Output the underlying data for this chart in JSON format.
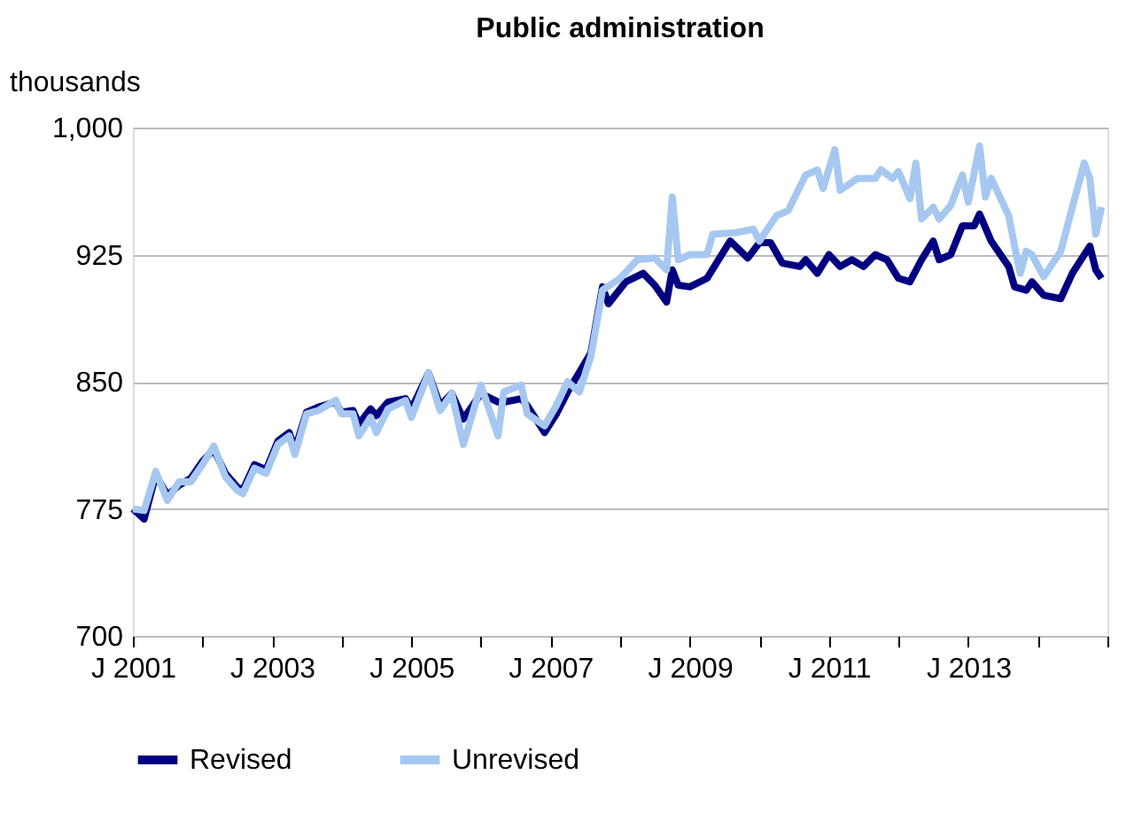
{
  "chart_data": {
    "type": "line",
    "title": "Public administration",
    "ylabel": "thousands",
    "xlim": [
      "2001-01",
      "2015-01"
    ],
    "xticks": [
      {
        "value": "2001-01",
        "label": "J 2001"
      },
      {
        "value": "2002-01",
        "label": null
      },
      {
        "value": "2003-01",
        "label": "J 2003"
      },
      {
        "value": "2004-01",
        "label": null
      },
      {
        "value": "2005-01",
        "label": "J 2005"
      },
      {
        "value": "2006-01",
        "label": null
      },
      {
        "value": "2007-01",
        "label": "J 2007"
      },
      {
        "value": "2008-01",
        "label": null
      },
      {
        "value": "2009-01",
        "label": "J 2009"
      },
      {
        "value": "2010-01",
        "label": null
      },
      {
        "value": "2011-01",
        "label": "J 2011"
      },
      {
        "value": "2012-01",
        "label": null
      },
      {
        "value": "2013-01",
        "label": "J 2013"
      },
      {
        "value": "2014-01",
        "label": null
      },
      {
        "value": "2015-01",
        "label": null
      }
    ],
    "ylim": [
      700,
      1000
    ],
    "yticks": [
      700,
      775,
      850,
      925,
      {
        "value": 1000,
        "label": "1,000"
      }
    ],
    "grid": "y",
    "legend": "bottom",
    "line_style": "solid",
    "marker": "none",
    "series": [
      {
        "name": "Revised",
        "color": "#000080",
        "x": [
          "2001-01",
          "2001-03",
          "2001-05",
          "2001-07",
          "2001-09",
          "2001-11",
          "2002-01",
          "2002-03",
          "2002-05",
          "2002-07",
          "2002-08",
          "2002-10",
          "2002-12",
          "2003-02",
          "2003-04",
          "2003-05",
          "2003-07",
          "2003-09",
          "2003-12",
          "2004-01",
          "2004-03",
          "2004-04",
          "2004-06",
          "2004-07",
          "2004-09",
          "2004-12",
          "2005-01",
          "2005-04",
          "2005-06",
          "2005-08",
          "2005-10",
          "2006-01",
          "2006-04",
          "2006-05",
          "2006-08",
          "2006-09",
          "2006-12",
          "2007-02",
          "2007-04",
          "2007-08",
          "2007-10",
          "2007-11",
          "2008-02",
          "2008-05",
          "2008-07",
          "2008-09",
          "2008-10",
          "2008-11",
          "2009-01",
          "2009-04",
          "2009-06",
          "2009-08",
          "2009-11",
          "2010-01",
          "2010-03",
          "2010-05",
          "2010-08",
          "2010-09",
          "2010-11",
          "2011-01",
          "2011-03",
          "2011-05",
          "2011-07",
          "2011-09",
          "2011-11",
          "2012-01",
          "2012-03",
          "2012-05",
          "2012-07",
          "2012-08",
          "2012-10",
          "2012-12",
          "2013-02",
          "2013-03",
          "2013-05",
          "2013-08",
          "2013-09",
          "2013-11",
          "2013-12",
          "2014-02",
          "2014-05",
          "2014-07",
          "2014-10",
          "2014-11",
          "2014-12"
        ],
        "values": [
          775,
          769,
          795,
          783,
          789,
          793,
          803,
          810,
          796,
          788,
          786,
          801,
          798,
          815,
          820,
          810,
          832,
          835,
          838,
          832,
          833,
          825,
          834,
          830,
          838,
          840,
          834,
          855,
          836,
          843,
          828,
          843,
          838,
          838,
          840,
          836,
          820,
          831,
          844,
          867,
          906,
          896,
          909,
          914,
          907,
          897,
          916,
          907,
          906,
          911,
          922,
          933,
          923,
          932,
          932,
          920,
          918,
          922,
          914,
          925,
          918,
          922,
          918,
          925,
          922,
          911,
          909,
          922,
          933,
          922,
          925,
          942,
          942,
          949,
          933,
          918,
          906,
          904,
          909,
          901,
          899,
          914,
          930,
          916,
          911
        ]
      },
      {
        "name": "Unrevised",
        "color": "#a6c8f0",
        "x": [
          "2001-01",
          "2001-03",
          "2001-05",
          "2001-07",
          "2001-09",
          "2001-11",
          "2002-01",
          "2002-03",
          "2002-05",
          "2002-07",
          "2002-08",
          "2002-10",
          "2002-12",
          "2003-02",
          "2003-04",
          "2003-05",
          "2003-07",
          "2003-09",
          "2003-12",
          "2004-01",
          "2004-03",
          "2004-04",
          "2004-06",
          "2004-07",
          "2004-09",
          "2004-12",
          "2005-01",
          "2005-04",
          "2005-06",
          "2005-08",
          "2005-10",
          "2006-01",
          "2006-04",
          "2006-05",
          "2006-08",
          "2006-09",
          "2006-12",
          "2007-02",
          "2007-04",
          "2007-06",
          "2007-08",
          "2007-10",
          "2008-01",
          "2008-04",
          "2008-07",
          "2008-09",
          "2008-10",
          "2008-11",
          "2009-01",
          "2009-04",
          "2009-05",
          "2009-09",
          "2009-12",
          "2010-01",
          "2010-04",
          "2010-06",
          "2010-09",
          "2010-11",
          "2010-12",
          "2011-02",
          "2011-03",
          "2011-06",
          "2011-09",
          "2011-10",
          "2011-12",
          "2012-01",
          "2012-03",
          "2012-04",
          "2012-05",
          "2012-07",
          "2012-08",
          "2012-10",
          "2012-12",
          "2013-01",
          "2013-03",
          "2013-04",
          "2013-05",
          "2013-08",
          "2013-09",
          "2013-10",
          "2013-11",
          "2013-12",
          "2014-02",
          "2014-05",
          "2014-07",
          "2014-09",
          "2014-10",
          "2014-11",
          "2014-12"
        ],
        "values": [
          775,
          774,
          797,
          780,
          791,
          791,
          801,
          812,
          794,
          786,
          784,
          799,
          796,
          813,
          818,
          807,
          831,
          833,
          839,
          831,
          831,
          818,
          829,
          820,
          834,
          839,
          829,
          855,
          833,
          843,
          813,
          848,
          818,
          844,
          848,
          831,
          824,
          836,
          850,
          844,
          865,
          904,
          911,
          922,
          923,
          916,
          959,
          922,
          925,
          925,
          937,
          938,
          940,
          933,
          948,
          951,
          972,
          975,
          964,
          987,
          963,
          970,
          970,
          975,
          970,
          974,
          958,
          979,
          946,
          953,
          946,
          954,
          972,
          956,
          989,
          959,
          970,
          948,
          930,
          914,
          927,
          925,
          912,
          927,
          953,
          979,
          970,
          937,
          953
        ]
      }
    ]
  }
}
